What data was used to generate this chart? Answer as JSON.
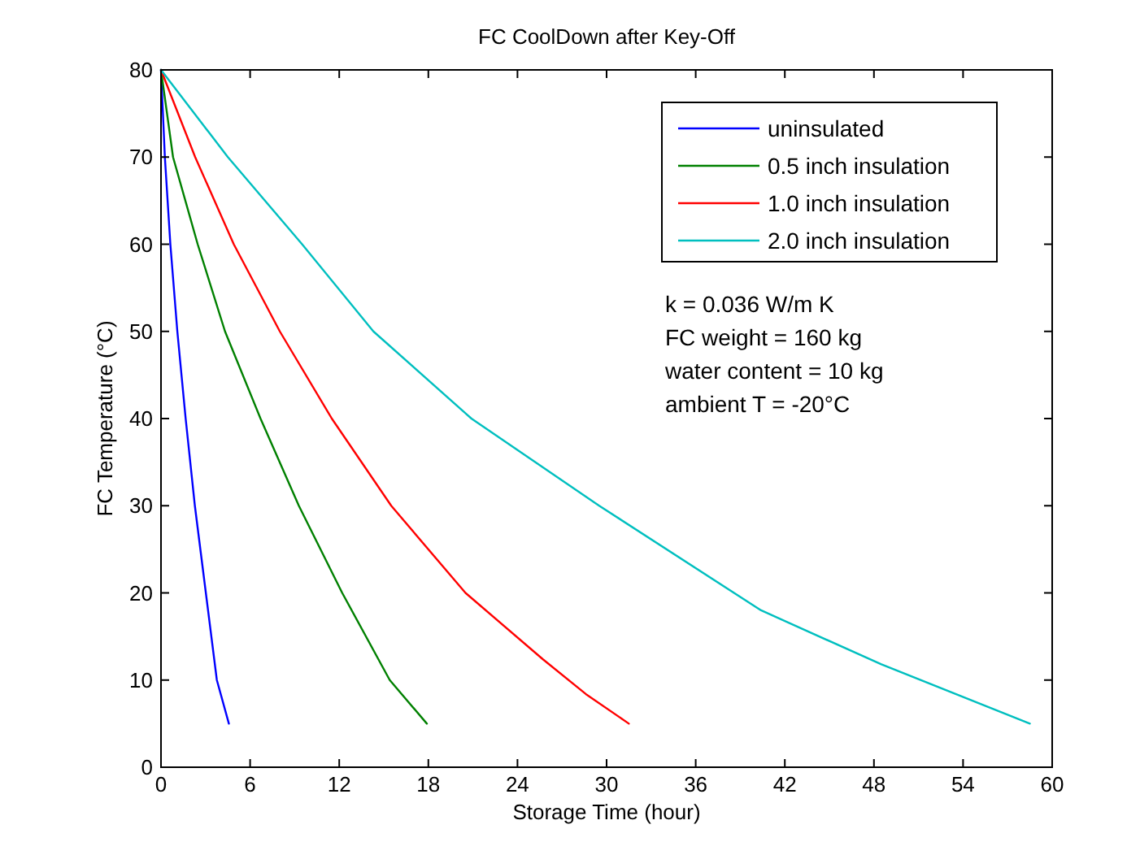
{
  "chart_data": {
    "type": "line",
    "title": "FC CoolDown after Key-Off",
    "xlabel": "Storage Time (hour)",
    "ylabel": "FC Temperature (°C)",
    "xlim": [
      0,
      60
    ],
    "xticks": [
      0,
      6,
      12,
      18,
      24,
      30,
      36,
      42,
      48,
      54,
      60
    ],
    "ylim": [
      0,
      80
    ],
    "yticks": [
      0,
      10,
      20,
      30,
      40,
      50,
      60,
      70,
      80
    ],
    "grid": false,
    "legend": "top right",
    "marker": "none",
    "line_style": "solid",
    "annotations": [
      "k = 0.036 W/m K",
      "FC weight = 160 kg",
      "water content = 10 kg",
      "ambient T = -20°C"
    ],
    "series": [
      {
        "name": "uninsulated",
        "color": "#0000ff",
        "x": [
          0,
          0.26,
          0.63,
          1.1,
          1.66,
          2.28,
          3.02,
          3.76,
          4.57
        ],
        "values": [
          80,
          70,
          60,
          50,
          40,
          30,
          20,
          10,
          5
        ]
      },
      {
        "name": "0.5 inch insulation",
        "color": "#008000",
        "x": [
          0,
          0.81,
          2.47,
          4.31,
          6.7,
          9.28,
          12.2,
          15.4,
          17.9
        ],
        "values": [
          80,
          70,
          60,
          50,
          40,
          30,
          20,
          10,
          5
        ]
      },
      {
        "name": "1.0 inch insulation",
        "color": "#ff0000",
        "x": [
          0,
          2.3,
          4.9,
          8.0,
          11.5,
          15.5,
          20.5,
          25.7,
          28.6,
          31.5
        ],
        "values": [
          80,
          70,
          60,
          50,
          40,
          30,
          20,
          12.4,
          8.4,
          5
        ]
      },
      {
        "name": "2.0 inch insulation",
        "color": "#00bfbf",
        "x": [
          0,
          4.5,
          9.5,
          14.3,
          20.9,
          29.5,
          40.4,
          48.5,
          58.5
        ],
        "values": [
          80,
          70,
          60,
          50,
          40,
          30,
          18,
          11.8,
          5
        ]
      }
    ]
  }
}
